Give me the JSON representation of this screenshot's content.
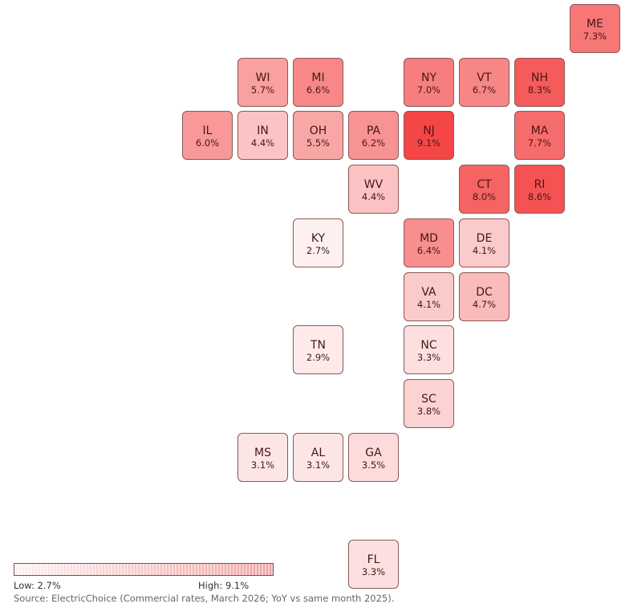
{
  "states": [
    {
      "abbr": "ME",
      "value": 7.3
    },
    {
      "abbr": "WI",
      "value": 5.7
    },
    {
      "abbr": "MI",
      "value": 6.6
    },
    {
      "abbr": "NY",
      "value": 7.0
    },
    {
      "abbr": "VT",
      "value": 6.7
    },
    {
      "abbr": "NH",
      "value": 8.3
    },
    {
      "abbr": "IL",
      "value": 6.0
    },
    {
      "abbr": "IN",
      "value": 4.4
    },
    {
      "abbr": "OH",
      "value": 5.5
    },
    {
      "abbr": "PA",
      "value": 6.2
    },
    {
      "abbr": "NJ",
      "value": 9.1
    },
    {
      "abbr": "MA",
      "value": 7.7
    },
    {
      "abbr": "WV",
      "value": 4.4
    },
    {
      "abbr": "CT",
      "value": 8.0
    },
    {
      "abbr": "RI",
      "value": 8.6
    },
    {
      "abbr": "KY",
      "value": 2.7
    },
    {
      "abbr": "MD",
      "value": 6.4
    },
    {
      "abbr": "DE",
      "value": 4.1
    },
    {
      "abbr": "VA",
      "value": 4.1
    },
    {
      "abbr": "DC",
      "value": 4.7
    },
    {
      "abbr": "TN",
      "value": 2.9
    },
    {
      "abbr": "NC",
      "value": 3.3
    },
    {
      "abbr": "SC",
      "value": 3.8
    },
    {
      "abbr": "MS",
      "value": 3.1
    },
    {
      "abbr": "AL",
      "value": 3.1
    },
    {
      "abbr": "GA",
      "value": 3.5
    },
    {
      "abbr": "FL",
      "value": 3.3
    }
  ],
  "legend": {
    "low_label": "Low: 2.7%",
    "high_label": "High: 9.1%",
    "min": 2.7,
    "max": 9.1,
    "low_color": "#fdf0f0",
    "high_color": "#f44646"
  },
  "source": "Source: ElectricChoice (Commercial rates, March 2026; YoY vs same month 2025)."
}
